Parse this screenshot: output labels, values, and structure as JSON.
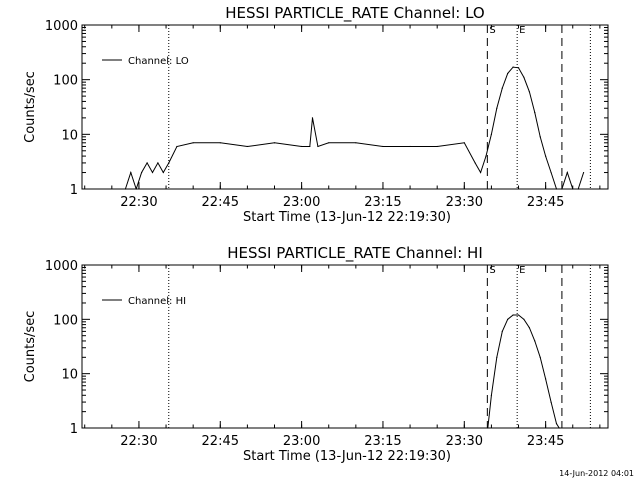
{
  "chart_data": [
    {
      "type": "line",
      "title": "HESSI PARTICLE_RATE Channel: LO",
      "xlabel": "Start Time (13-Jun-12 22:19:30)",
      "ylabel": "Counts/sec",
      "yscale": "log",
      "ylim": [
        1,
        1000
      ],
      "xlim": [
        "22:19:30",
        "23:56:30"
      ],
      "xticks": [
        "22:30",
        "22:45",
        "23:00",
        "23:15",
        "23:30",
        "23:45"
      ],
      "yticks": [
        "1",
        "10",
        "100",
        "1000"
      ],
      "legend": {
        "entries": [
          "Channel: LO"
        ],
        "placement": "top-left"
      },
      "vlines": [
        {
          "time": "22:35:30",
          "style": "dotted"
        },
        {
          "time": "23:34:15",
          "style": "dashed",
          "label": "S"
        },
        {
          "time": "23:39:45",
          "style": "dotted",
          "label": "E"
        },
        {
          "time": "23:48:00",
          "style": "dashed"
        },
        {
          "time": "23:53:15",
          "style": "dotted"
        }
      ],
      "series": [
        {
          "name": "Channel: LO",
          "x": [
            "22:27:30",
            "22:28:30",
            "22:29:30",
            "22:30:30",
            "22:31:30",
            "22:32:30",
            "22:33:30",
            "22:34:30",
            "22:35:30",
            "22:37:00",
            "22:40:00",
            "22:45:00",
            "22:50:00",
            "22:55:00",
            "23:00:00",
            "23:01:30",
            "23:02:00",
            "23:03:00",
            "23:05:00",
            "23:10:00",
            "23:15:00",
            "23:20:00",
            "23:25:00",
            "23:30:00",
            "23:32:00",
            "23:33:00",
            "23:34:00",
            "23:35:00",
            "23:36:00",
            "23:37:00",
            "23:38:00",
            "23:39:00",
            "23:40:00",
            "23:41:00",
            "23:42:00",
            "23:43:00",
            "23:44:00",
            "23:45:00",
            "23:46:00",
            "23:47:00",
            "23:48:00",
            "23:49:00",
            "23:50:00",
            "23:51:00",
            "23:52:00"
          ],
          "y": [
            1,
            2,
            1,
            2,
            3,
            2,
            3,
            2,
            3,
            6,
            7,
            7,
            6,
            7,
            6,
            6,
            20,
            6,
            7,
            7,
            6,
            6,
            6,
            7,
            3,
            2,
            4,
            10,
            30,
            70,
            130,
            170,
            165,
            110,
            60,
            25,
            9,
            4,
            2,
            1,
            1,
            2,
            1,
            1,
            2
          ]
        }
      ]
    },
    {
      "type": "line",
      "title": "HESSI PARTICLE_RATE Channel: HI",
      "xlabel": "Start Time (13-Jun-12 22:19:30)",
      "ylabel": "Counts/sec",
      "yscale": "log",
      "ylim": [
        1,
        1000
      ],
      "xlim": [
        "22:19:30",
        "23:56:30"
      ],
      "xticks": [
        "22:30",
        "22:45",
        "23:00",
        "23:15",
        "23:30",
        "23:45"
      ],
      "yticks": [
        "1",
        "10",
        "100",
        "1000"
      ],
      "legend": {
        "entries": [
          "Channel: HI"
        ],
        "placement": "top-left"
      },
      "vlines": [
        {
          "time": "22:35:30",
          "style": "dotted"
        },
        {
          "time": "23:34:15",
          "style": "dashed",
          "label": "S"
        },
        {
          "time": "23:39:45",
          "style": "dotted",
          "label": "E"
        },
        {
          "time": "23:48:00",
          "style": "dashed"
        },
        {
          "time": "23:53:15",
          "style": "dotted"
        }
      ],
      "series": [
        {
          "name": "Channel: HI",
          "x": [
            "23:34:20",
            "23:35:00",
            "23:36:00",
            "23:37:00",
            "23:38:00",
            "23:39:00",
            "23:40:00",
            "23:41:00",
            "23:42:00",
            "23:43:00",
            "23:44:00",
            "23:45:00",
            "23:46:00",
            "23:47:00",
            "23:47:30"
          ],
          "y": [
            1,
            4,
            20,
            60,
            100,
            120,
            120,
            100,
            70,
            40,
            20,
            8,
            3,
            1.2,
            1
          ]
        }
      ]
    }
  ],
  "footer": "14-Jun-2012 04:01"
}
